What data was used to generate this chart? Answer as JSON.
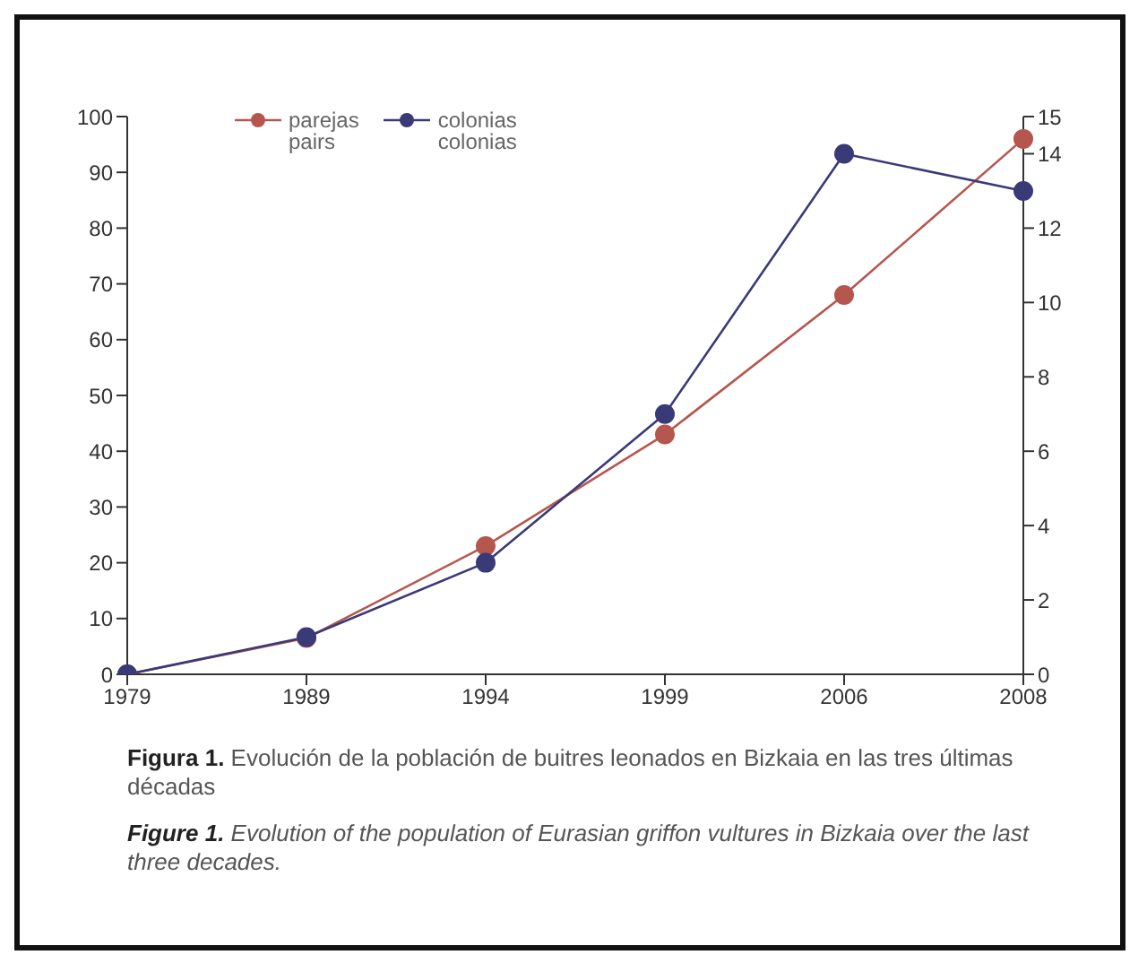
{
  "chart_data": {
    "type": "line",
    "categories": [
      "1979",
      "1989",
      "1994",
      "1999",
      "2006",
      "2008"
    ],
    "series": [
      {
        "name": "parejas\npairs",
        "color": "#b5574f",
        "values": [
          0,
          6.5,
          23,
          43,
          68,
          96
        ]
      },
      {
        "name": "colonias\ncolonias",
        "color": "#3a3a78",
        "values": [
          0,
          1,
          3,
          7,
          14,
          13
        ],
        "axis": "y2"
      }
    ],
    "ylim": [
      0,
      100
    ],
    "yticks": [
      0,
      10,
      20,
      30,
      40,
      50,
      60,
      70,
      80,
      90,
      100
    ],
    "y2lim": [
      0,
      15
    ],
    "y2ticks": [
      0,
      2,
      4,
      6,
      8,
      10,
      12,
      14,
      15
    ],
    "grid": false,
    "legend": "top left",
    "marker": "circle",
    "line_style": "solid",
    "annotations": [
      "Figura 1. Evolución de la población de buitres leonados en Bizkaia en las tres últimas décadas",
      "Figure 1. Evolution of the population of Eurasian griffon vultures in Bizkaia over the last three decades."
    ]
  }
}
